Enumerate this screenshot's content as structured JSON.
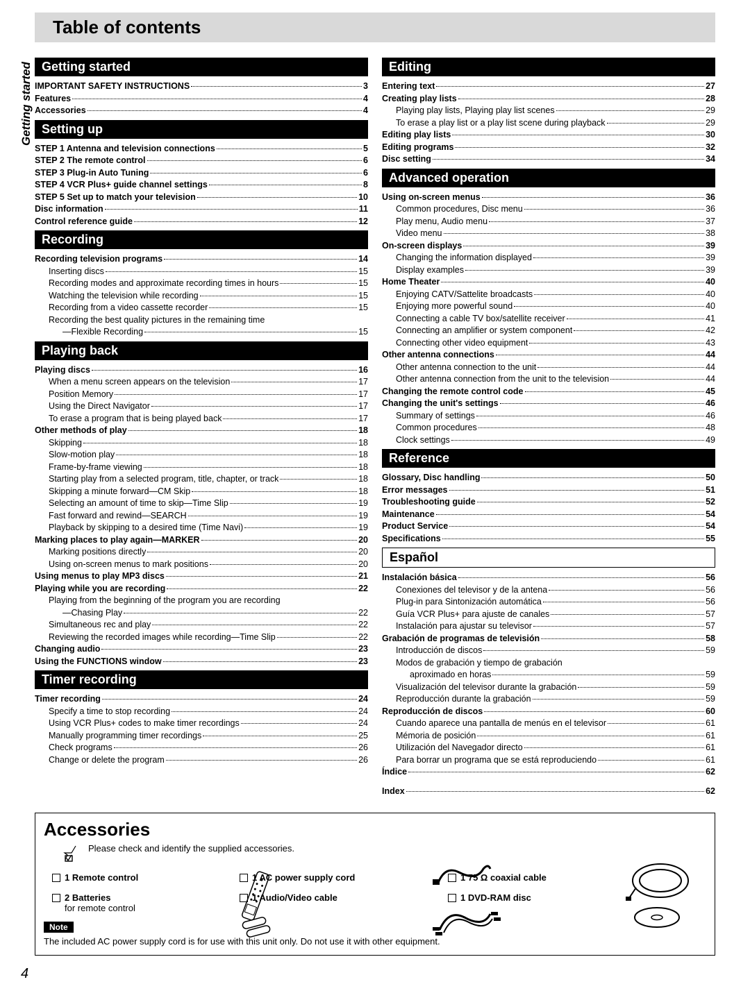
{
  "title": "Table of contents",
  "side_tab": "Getting started",
  "page_number": "4",
  "left": [
    {
      "type": "hdr",
      "text": "Getting started"
    },
    {
      "b": 1,
      "lbl": "IMPORTANT SAFETY INSTRUCTIONS",
      "pg": "3"
    },
    {
      "b": 1,
      "lbl": "Features",
      "pg": "4"
    },
    {
      "b": 1,
      "lbl": "Accessories",
      "pg": "4"
    },
    {
      "type": "hdr",
      "text": "Setting up"
    },
    {
      "b": 1,
      "lbl": "STEP 1 Antenna and television connections",
      "pg": "5"
    },
    {
      "b": 1,
      "lbl": "STEP 2 The remote control",
      "pg": "6"
    },
    {
      "b": 1,
      "lbl": "STEP 3 Plug-in Auto Tuning",
      "pg": "6"
    },
    {
      "b": 1,
      "lbl": "STEP 4 VCR Plus+ guide channel settings",
      "pg": "8"
    },
    {
      "b": 1,
      "lbl": "STEP 5 Set up to match your television",
      "pg": "10"
    },
    {
      "b": 1,
      "lbl": "Disc information",
      "pg": "11"
    },
    {
      "b": 1,
      "lbl": "Control reference guide",
      "pg": "12"
    },
    {
      "type": "hdr",
      "text": "Recording"
    },
    {
      "b": 1,
      "lbl": "Recording television programs",
      "pg": "14"
    },
    {
      "ind": 1,
      "lbl": "Inserting discs",
      "pg": "15"
    },
    {
      "ind": 1,
      "lbl": "Recording modes and approximate recording times in hours",
      "pg": "15"
    },
    {
      "ind": 1,
      "lbl": "Watching the television while recording",
      "pg": "15"
    },
    {
      "ind": 1,
      "lbl": "Recording from a video cassette recorder",
      "pg": "15"
    },
    {
      "ind": 1,
      "noline": 1,
      "lbl": "Recording the best quality pictures in the remaining time",
      "pg": ""
    },
    {
      "ind": 2,
      "lbl": "—Flexible Recording",
      "pg": "15"
    },
    {
      "type": "hdr",
      "text": "Playing back"
    },
    {
      "b": 1,
      "lbl": "Playing discs",
      "pg": "16"
    },
    {
      "ind": 1,
      "lbl": "When a menu screen appears on the television",
      "pg": "17"
    },
    {
      "ind": 1,
      "lbl": "Position Memory",
      "pg": "17"
    },
    {
      "ind": 1,
      "lbl": "Using the Direct Navigator",
      "pg": "17"
    },
    {
      "ind": 1,
      "lbl": "To erase a program that is being played back",
      "pg": "17"
    },
    {
      "b": 1,
      "lbl": "Other methods of play",
      "pg": "18"
    },
    {
      "ind": 1,
      "lbl": "Skipping",
      "pg": "18"
    },
    {
      "ind": 1,
      "lbl": "Slow-motion play",
      "pg": "18"
    },
    {
      "ind": 1,
      "lbl": "Frame-by-frame viewing",
      "pg": "18"
    },
    {
      "ind": 1,
      "lbl": "Starting play from a selected program, title, chapter, or track",
      "pg": "18"
    },
    {
      "ind": 1,
      "lbl": "Skipping a minute forward—CM Skip",
      "pg": "18"
    },
    {
      "ind": 1,
      "lbl": "Selecting an amount of time to skip—Time Slip",
      "pg": "19"
    },
    {
      "ind": 1,
      "lbl": "Fast forward and rewind—SEARCH",
      "pg": "19"
    },
    {
      "ind": 1,
      "lbl": "Playback by skipping to a desired time (Time Navi)",
      "pg": "19"
    },
    {
      "b": 1,
      "lbl": "Marking places to play again—MARKER",
      "pg": "20"
    },
    {
      "ind": 1,
      "lbl": "Marking positions directly",
      "pg": "20"
    },
    {
      "ind": 1,
      "lbl": "Using on-screen menus to mark positions",
      "pg": "20"
    },
    {
      "b": 1,
      "lbl": "Using menus to play MP3 discs",
      "pg": "21"
    },
    {
      "b": 1,
      "lbl": "Playing while you are recording",
      "pg": "22"
    },
    {
      "ind": 1,
      "noline": 1,
      "lbl": "Playing from the beginning of the program you are recording",
      "pg": ""
    },
    {
      "ind": 2,
      "lbl": "—Chasing Play",
      "pg": "22"
    },
    {
      "ind": 1,
      "lbl": "Simultaneous rec and play",
      "pg": "22"
    },
    {
      "ind": 1,
      "lbl": "Reviewing the recorded images while recording—Time Slip",
      "pg": "22"
    },
    {
      "b": 1,
      "lbl": "Changing audio",
      "pg": "23"
    },
    {
      "b": 1,
      "lbl": "Using the FUNCTIONS window",
      "pg": "23"
    },
    {
      "type": "hdr",
      "text": "Timer recording"
    },
    {
      "b": 1,
      "lbl": "Timer recording",
      "pg": "24"
    },
    {
      "ind": 1,
      "lbl": "Specify a time to stop recording",
      "pg": "24"
    },
    {
      "ind": 1,
      "lbl": "Using VCR Plus+ codes to make timer recordings",
      "pg": "24"
    },
    {
      "ind": 1,
      "lbl": "Manually programming timer recordings",
      "pg": "25"
    },
    {
      "ind": 1,
      "lbl": "Check programs",
      "pg": "26"
    },
    {
      "ind": 1,
      "lbl": "Change or delete the program",
      "pg": "26"
    }
  ],
  "right": [
    {
      "type": "hdr",
      "text": "Editing"
    },
    {
      "b": 1,
      "lbl": "Entering text",
      "pg": "27"
    },
    {
      "b": 1,
      "lbl": "Creating play lists",
      "pg": "28"
    },
    {
      "ind": 1,
      "lbl": "Playing play lists, Playing play list scenes",
      "pg": "29"
    },
    {
      "ind": 1,
      "lbl": "To erase a play list or a play list scene during playback",
      "pg": "29"
    },
    {
      "b": 1,
      "lbl": "Editing play lists",
      "pg": "30"
    },
    {
      "b": 1,
      "lbl": "Editing programs",
      "pg": "32"
    },
    {
      "b": 1,
      "lbl": "Disc setting",
      "pg": "34"
    },
    {
      "type": "hdr",
      "text": "Advanced operation"
    },
    {
      "b": 1,
      "lbl": "Using on-screen menus",
      "pg": "36"
    },
    {
      "ind": 1,
      "lbl": "Common procedures, Disc menu",
      "pg": "36"
    },
    {
      "ind": 1,
      "lbl": "Play menu, Audio menu",
      "pg": "37"
    },
    {
      "ind": 1,
      "lbl": "Video menu",
      "pg": "38"
    },
    {
      "b": 1,
      "lbl": "On-screen displays",
      "pg": "39"
    },
    {
      "ind": 1,
      "lbl": "Changing the information displayed",
      "pg": "39"
    },
    {
      "ind": 1,
      "lbl": "Display examples",
      "pg": "39"
    },
    {
      "b": 1,
      "lbl": "Home Theater",
      "pg": "40"
    },
    {
      "ind": 1,
      "lbl": "Enjoying CATV/Sattelite broadcasts",
      "pg": "40"
    },
    {
      "ind": 1,
      "lbl": "Enjoying more powerful sound",
      "pg": "40"
    },
    {
      "ind": 1,
      "lbl": "Connecting a cable TV box/satellite receiver",
      "pg": "41"
    },
    {
      "ind": 1,
      "lbl": "Connecting an amplifier or system component",
      "pg": "42"
    },
    {
      "ind": 1,
      "lbl": "Connecting other video equipment",
      "pg": "43"
    },
    {
      "b": 1,
      "lbl": "Other antenna connections",
      "pg": "44"
    },
    {
      "ind": 1,
      "lbl": "Other antenna connection to the unit",
      "pg": "44"
    },
    {
      "ind": 1,
      "lbl": "Other antenna connection from the unit to the television",
      "pg": "44"
    },
    {
      "b": 1,
      "lbl": "Changing the remote control code",
      "pg": "45"
    },
    {
      "b": 1,
      "lbl": "Changing the unit's settings",
      "pg": "46"
    },
    {
      "ind": 1,
      "lbl": "Summary of settings",
      "pg": "46"
    },
    {
      "ind": 1,
      "lbl": "Common procedures",
      "pg": "48"
    },
    {
      "ind": 1,
      "lbl": "Clock settings",
      "pg": "49"
    },
    {
      "type": "hdr",
      "text": "Reference"
    },
    {
      "b": 1,
      "lbl": "Glossary, Disc handling",
      "pg": "50"
    },
    {
      "b": 1,
      "lbl": "Error messages",
      "pg": "51"
    },
    {
      "b": 1,
      "lbl": "Troubleshooting guide",
      "pg": "52"
    },
    {
      "b": 1,
      "lbl": "Maintenance",
      "pg": "54"
    },
    {
      "b": 1,
      "lbl": "Product Service",
      "pg": "54"
    },
    {
      "b": 1,
      "lbl": "Specifications",
      "pg": "55"
    },
    {
      "type": "hdr",
      "outline": 1,
      "text": "Español"
    },
    {
      "b": 1,
      "lbl": "Instalación básica",
      "pg": "56"
    },
    {
      "ind": 1,
      "lbl": "Conexiones del televisor y de la antena",
      "pg": "56"
    },
    {
      "ind": 1,
      "lbl": "Plug-in para Sintonización automática",
      "pg": "56"
    },
    {
      "ind": 1,
      "lbl": "Guía VCR Plus+ para ajuste de canales",
      "pg": "57"
    },
    {
      "ind": 1,
      "lbl": "Instalación para ajustar su televisor",
      "pg": "57"
    },
    {
      "b": 1,
      "lbl": "Grabación de programas de televisión",
      "pg": "58"
    },
    {
      "ind": 1,
      "lbl": "Introducción de discos",
      "pg": "59"
    },
    {
      "ind": 1,
      "noline": 1,
      "lbl": "Modos de grabación y tiempo de grabación",
      "pg": ""
    },
    {
      "ind": 2,
      "lbl": "aproximado en horas",
      "pg": "59"
    },
    {
      "ind": 1,
      "lbl": "Visualización del televisor durante la grabación",
      "pg": "59"
    },
    {
      "ind": 1,
      "lbl": "Reproducción durante la grabación",
      "pg": "59"
    },
    {
      "b": 1,
      "lbl": "Reproducción de discos",
      "pg": "60"
    },
    {
      "ind": 1,
      "lbl": "Cuando aparece una pantalla de menús en el televisor",
      "pg": "61"
    },
    {
      "ind": 1,
      "lbl": "Mémoria de posición",
      "pg": "61"
    },
    {
      "ind": 1,
      "lbl": "Utilización del Navegador directo",
      "pg": "61"
    },
    {
      "ind": 1,
      "lbl": "Para borrar un programa que se está reproduciendo",
      "pg": "61"
    },
    {
      "b": 1,
      "lbl": "Índice",
      "pg": "62"
    },
    {
      "type": "gap"
    },
    {
      "b": 1,
      "lbl": "Index",
      "pg": "62"
    }
  ],
  "accessories": {
    "heading": "Accessories",
    "intro": "Please check and identify the supplied accessories.",
    "items": [
      {
        "qty": "1",
        "name": "Remote control",
        "sub": ""
      },
      {
        "qty": "1",
        "name": "AC power supply cord",
        "sub": ""
      },
      {
        "qty": "1",
        "name": "75 Ω coaxial cable",
        "sub": ""
      },
      {
        "qty": "2",
        "name": "Batteries",
        "sub": "for remote control"
      },
      {
        "qty": "1",
        "name": "Audio/Video cable",
        "sub": ""
      },
      {
        "qty": "1",
        "name": "DVD-RAM disc",
        "sub": ""
      }
    ],
    "note_label": "Note",
    "note_text": "The included AC power supply cord is for use with this unit only. Do not use it with other equipment."
  }
}
